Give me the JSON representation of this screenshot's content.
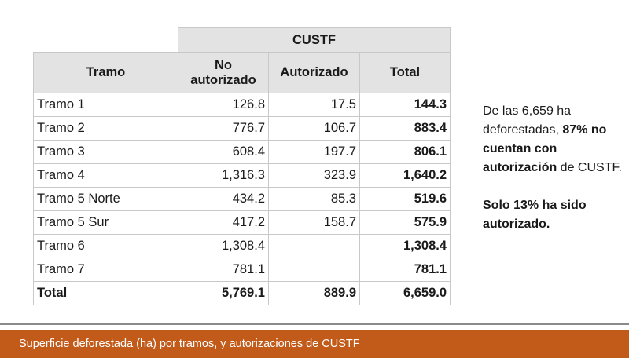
{
  "table": {
    "group_header": "CUSTF",
    "headers": {
      "tramo": "Tramo",
      "no_autorizado_line1": "No",
      "no_autorizado_line2": "autorizado",
      "autorizado": "Autorizado",
      "total": "Total"
    },
    "rows": [
      {
        "tramo": "Tramo 1",
        "no_autorizado": "126.8",
        "autorizado": "17.5",
        "total": "144.3"
      },
      {
        "tramo": "Tramo 2",
        "no_autorizado": "776.7",
        "autorizado": "106.7",
        "total": "883.4"
      },
      {
        "tramo": "Tramo 3",
        "no_autorizado": "608.4",
        "autorizado": "197.7",
        "total": "806.1"
      },
      {
        "tramo": "Tramo 4",
        "no_autorizado": "1,316.3",
        "autorizado": "323.9",
        "total": "1,640.2"
      },
      {
        "tramo": "Tramo 5 Norte",
        "no_autorizado": "434.2",
        "autorizado": "85.3",
        "total": "519.6"
      },
      {
        "tramo": "Tramo 5 Sur",
        "no_autorizado": "417.2",
        "autorizado": "158.7",
        "total": "575.9"
      },
      {
        "tramo": "Tramo 6",
        "no_autorizado": "1,308.4",
        "autorizado": "",
        "total": "1,308.4"
      },
      {
        "tramo": "Tramo 7",
        "no_autorizado": "781.1",
        "autorizado": "",
        "total": "781.1"
      }
    ],
    "total_row": {
      "tramo": "Total",
      "no_autorizado": "5,769.1",
      "autorizado": "889.9",
      "total": "6,659.0"
    }
  },
  "note": {
    "p1_part1": "De las 6,659 ha deforestadas, ",
    "p1_bold1": "87% no cuentan con autorización",
    "p1_part2": " de CUSTF.",
    "p2_bold": "Solo 13% ha sido autorizado."
  },
  "footer": {
    "caption": "Superficie deforestada (ha) por tramos, y autorizaciones de CUSTF"
  },
  "colors": {
    "header_bg": "#e3e3e3",
    "border": "#c8c8c8",
    "footer_bg": "#c25a1a"
  }
}
